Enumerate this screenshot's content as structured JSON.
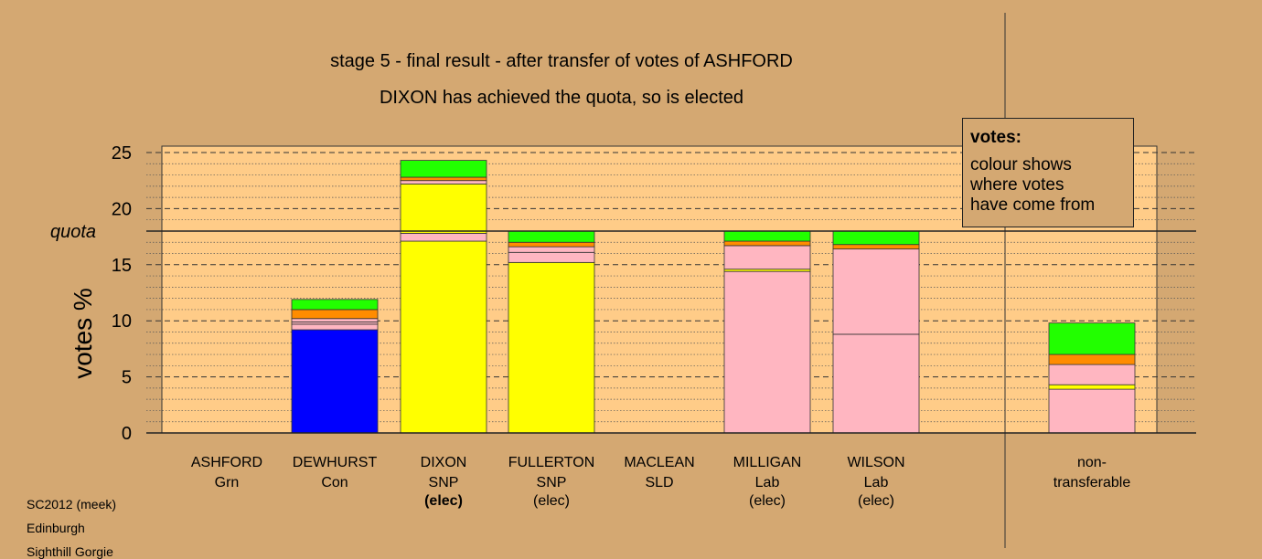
{
  "chart_data": {
    "type": "bar",
    "stacked": true,
    "title": "stage 5 - final result - after transfer of votes of ASHFORD",
    "subtitle": "DIXON has achieved the quota, so is elected",
    "ylabel": "votes %",
    "ylim": [
      0,
      25
    ],
    "y_ticks": [
      "0",
      "5",
      "10",
      "15",
      "20",
      "25"
    ],
    "quota": 18,
    "quota_label": "quota",
    "grid": true,
    "colors": {
      "Con": "#0000ff",
      "SNP": "#ffff00",
      "Lab": "#ffb6c1",
      "SLD": "#ff8c00",
      "Grn": "#22ff00",
      "background": "#d4a872",
      "plot": "#ffcc88"
    },
    "categories": [
      {
        "name": "ASHFORD",
        "party": "Grn",
        "status": ""
      },
      {
        "name": "DEWHURST",
        "party": "Con",
        "status": ""
      },
      {
        "name": "DIXON",
        "party": "SNP",
        "status": "(elec)",
        "bold_status": true
      },
      {
        "name": "FULLERTON",
        "party": "SNP",
        "status": "(elec)"
      },
      {
        "name": "MACLEAN",
        "party": "SLD",
        "status": ""
      },
      {
        "name": "MILLIGAN",
        "party": "Lab",
        "status": "(elec)"
      },
      {
        "name": "WILSON",
        "party": "Lab",
        "status": "(elec)"
      },
      {
        "name": "non-",
        "party": "transferable",
        "status": ""
      }
    ],
    "stacks": [
      [],
      [
        {
          "source": "Con",
          "value": 9.2
        },
        {
          "source": "Lab",
          "value": 0.5
        },
        {
          "source": "Lab",
          "value": 0.2
        },
        {
          "source": "Lab",
          "value": 0.3
        },
        {
          "source": "SLD",
          "value": 0.8
        },
        {
          "source": "Grn",
          "value": 0.9
        }
      ],
      [
        {
          "source": "SNP",
          "value": 17.1
        },
        {
          "source": "Lab",
          "value": 0.7
        },
        {
          "source": "SNP",
          "value": 4.4
        },
        {
          "source": "Lab",
          "value": 0.3
        },
        {
          "source": "SLD",
          "value": 0.3
        },
        {
          "source": "Grn",
          "value": 1.5
        }
      ],
      [
        {
          "source": "SNP",
          "value": 15.2
        },
        {
          "source": "Lab",
          "value": 0.9
        },
        {
          "source": "Lab",
          "value": 0.5
        },
        {
          "source": "SLD",
          "value": 0.4
        },
        {
          "source": "Grn",
          "value": 1.0
        }
      ],
      [],
      [
        {
          "source": "Lab",
          "value": 14.4
        },
        {
          "source": "SNP",
          "value": 0.2
        },
        {
          "source": "Lab",
          "value": 2.1
        },
        {
          "source": "SLD",
          "value": 0.4
        },
        {
          "source": "Grn",
          "value": 0.9
        }
      ],
      [
        {
          "source": "Lab",
          "value": 8.8
        },
        {
          "source": "Lab",
          "value": 7.6
        },
        {
          "source": "SLD",
          "value": 0.4
        },
        {
          "source": "Grn",
          "value": 1.2
        }
      ],
      [
        {
          "source": "Lab",
          "value": 3.9
        },
        {
          "source": "SNP",
          "value": 0.4
        },
        {
          "source": "Lab",
          "value": 1.8
        },
        {
          "source": "SLD",
          "value": 0.9
        },
        {
          "source": "Grn",
          "value": 2.8
        }
      ]
    ]
  },
  "legend": {
    "title": "votes:",
    "lines": [
      "colour shows",
      "where votes",
      "have come from"
    ]
  },
  "footer": [
    "SC2012 (meek)",
    "Edinburgh",
    "Sighthill Gorgie"
  ]
}
